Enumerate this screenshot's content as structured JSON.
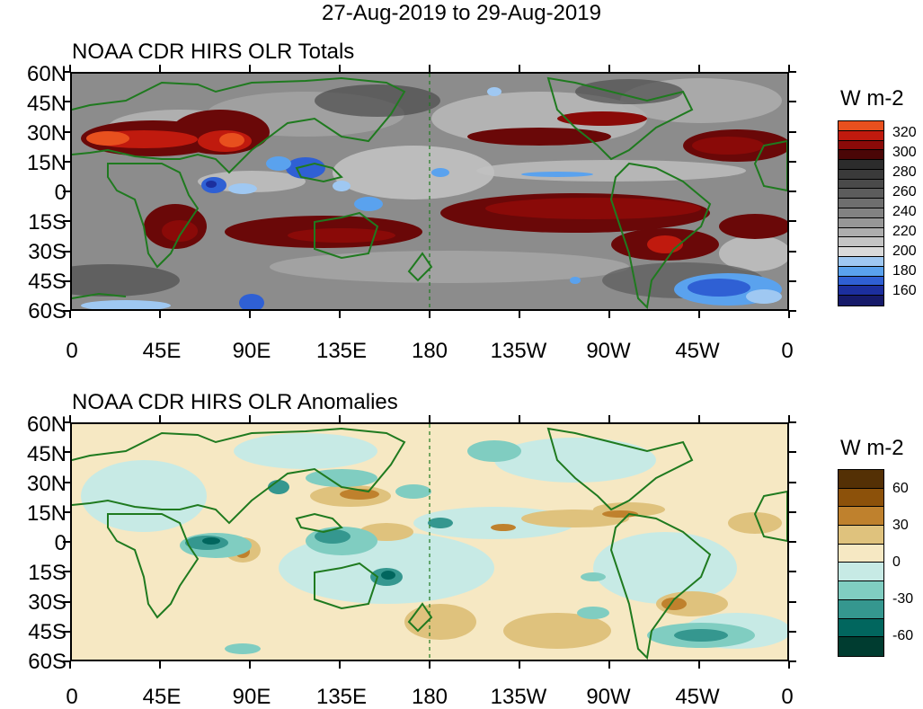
{
  "date_range_title": "27-Aug-2019 to 29-Aug-2019",
  "latitude_labels": [
    "60N",
    "45N",
    "30N",
    "15N",
    "0",
    "15S",
    "30S",
    "45S",
    "60S"
  ],
  "longitude_labels": [
    "0",
    "45E",
    "90E",
    "135E",
    "180",
    "135W",
    "90W",
    "45W",
    "0"
  ],
  "panels": [
    {
      "title": "NOAA CDR HIRS OLR Totals",
      "units": "W m-2",
      "colorbar_labels": [
        "320",
        "300",
        "280",
        "260",
        "240",
        "220",
        "200",
        "180",
        "160"
      ],
      "colorbar_colors": [
        "#e8501e",
        "#c01a0e",
        "#8a0a08",
        "#4a0606",
        "#2c2c2c",
        "#3a3a3a",
        "#4a4a4a",
        "#5c5c5c",
        "#6e6e6e",
        "#828282",
        "#979797",
        "#adadad",
        "#c4c4c4",
        "#dadada",
        "#9fc8f2",
        "#5aa2ee",
        "#2f60d4",
        "#1c2f9e",
        "#161a6a"
      ]
    },
    {
      "title": "NOAA CDR HIRS OLR Anomalies",
      "units": "W m-2",
      "colorbar_labels": [
        "60",
        "30",
        "0",
        "-30",
        "-60"
      ],
      "colorbar_colors": [
        "#543005",
        "#8c510a",
        "#bf812d",
        "#dfc27d",
        "#f6e8c3",
        "#c7eae5",
        "#80cdc1",
        "#35978f",
        "#01665e",
        "#003c30"
      ]
    }
  ],
  "colors": {
    "coastline": "#1f7a1f",
    "dateline": "#1f7a1f",
    "background": "#ffffff"
  }
}
